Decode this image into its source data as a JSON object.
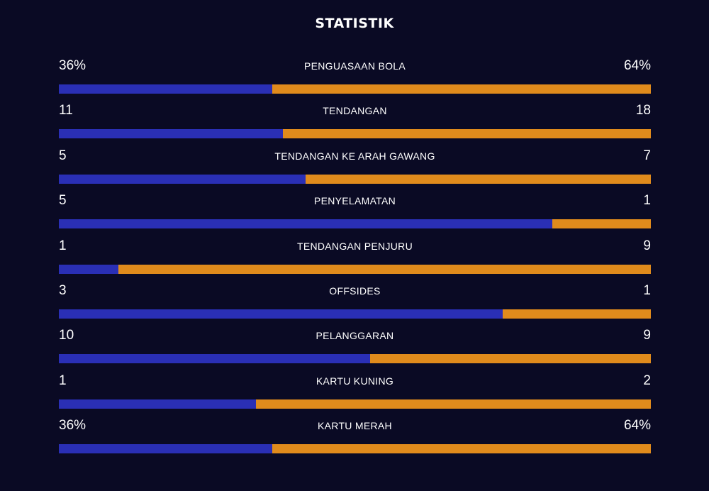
{
  "title": "STATISTIK",
  "colors": {
    "background": "#0a0a24",
    "home": "#2a2fb5",
    "away": "#e08b1c"
  },
  "stats": [
    {
      "label": "PENGUASAAN BOLA",
      "home": "36%",
      "away": "64%",
      "home_share": 0.36
    },
    {
      "label": "TENDANGAN",
      "home": "11",
      "away": "18",
      "home_share": 0.379
    },
    {
      "label": "TENDANGAN KE ARAH GAWANG",
      "home": "5",
      "away": "7",
      "home_share": 0.417
    },
    {
      "label": "PENYELAMATAN",
      "home": "5",
      "away": "1",
      "home_share": 0.833
    },
    {
      "label": "TENDANGAN PENJURU",
      "home": "1",
      "away": "9",
      "home_share": 0.1
    },
    {
      "label": "OFFSIDES",
      "home": "3",
      "away": "1",
      "home_share": 0.75
    },
    {
      "label": "PELANGGARAN",
      "home": "10",
      "away": "9",
      "home_share": 0.526
    },
    {
      "label": "KARTU KUNING",
      "home": "1",
      "away": "2",
      "home_share": 0.333
    },
    {
      "label": "KARTU MERAH",
      "home": "36%",
      "away": "64%",
      "home_share": 0.36
    }
  ]
}
